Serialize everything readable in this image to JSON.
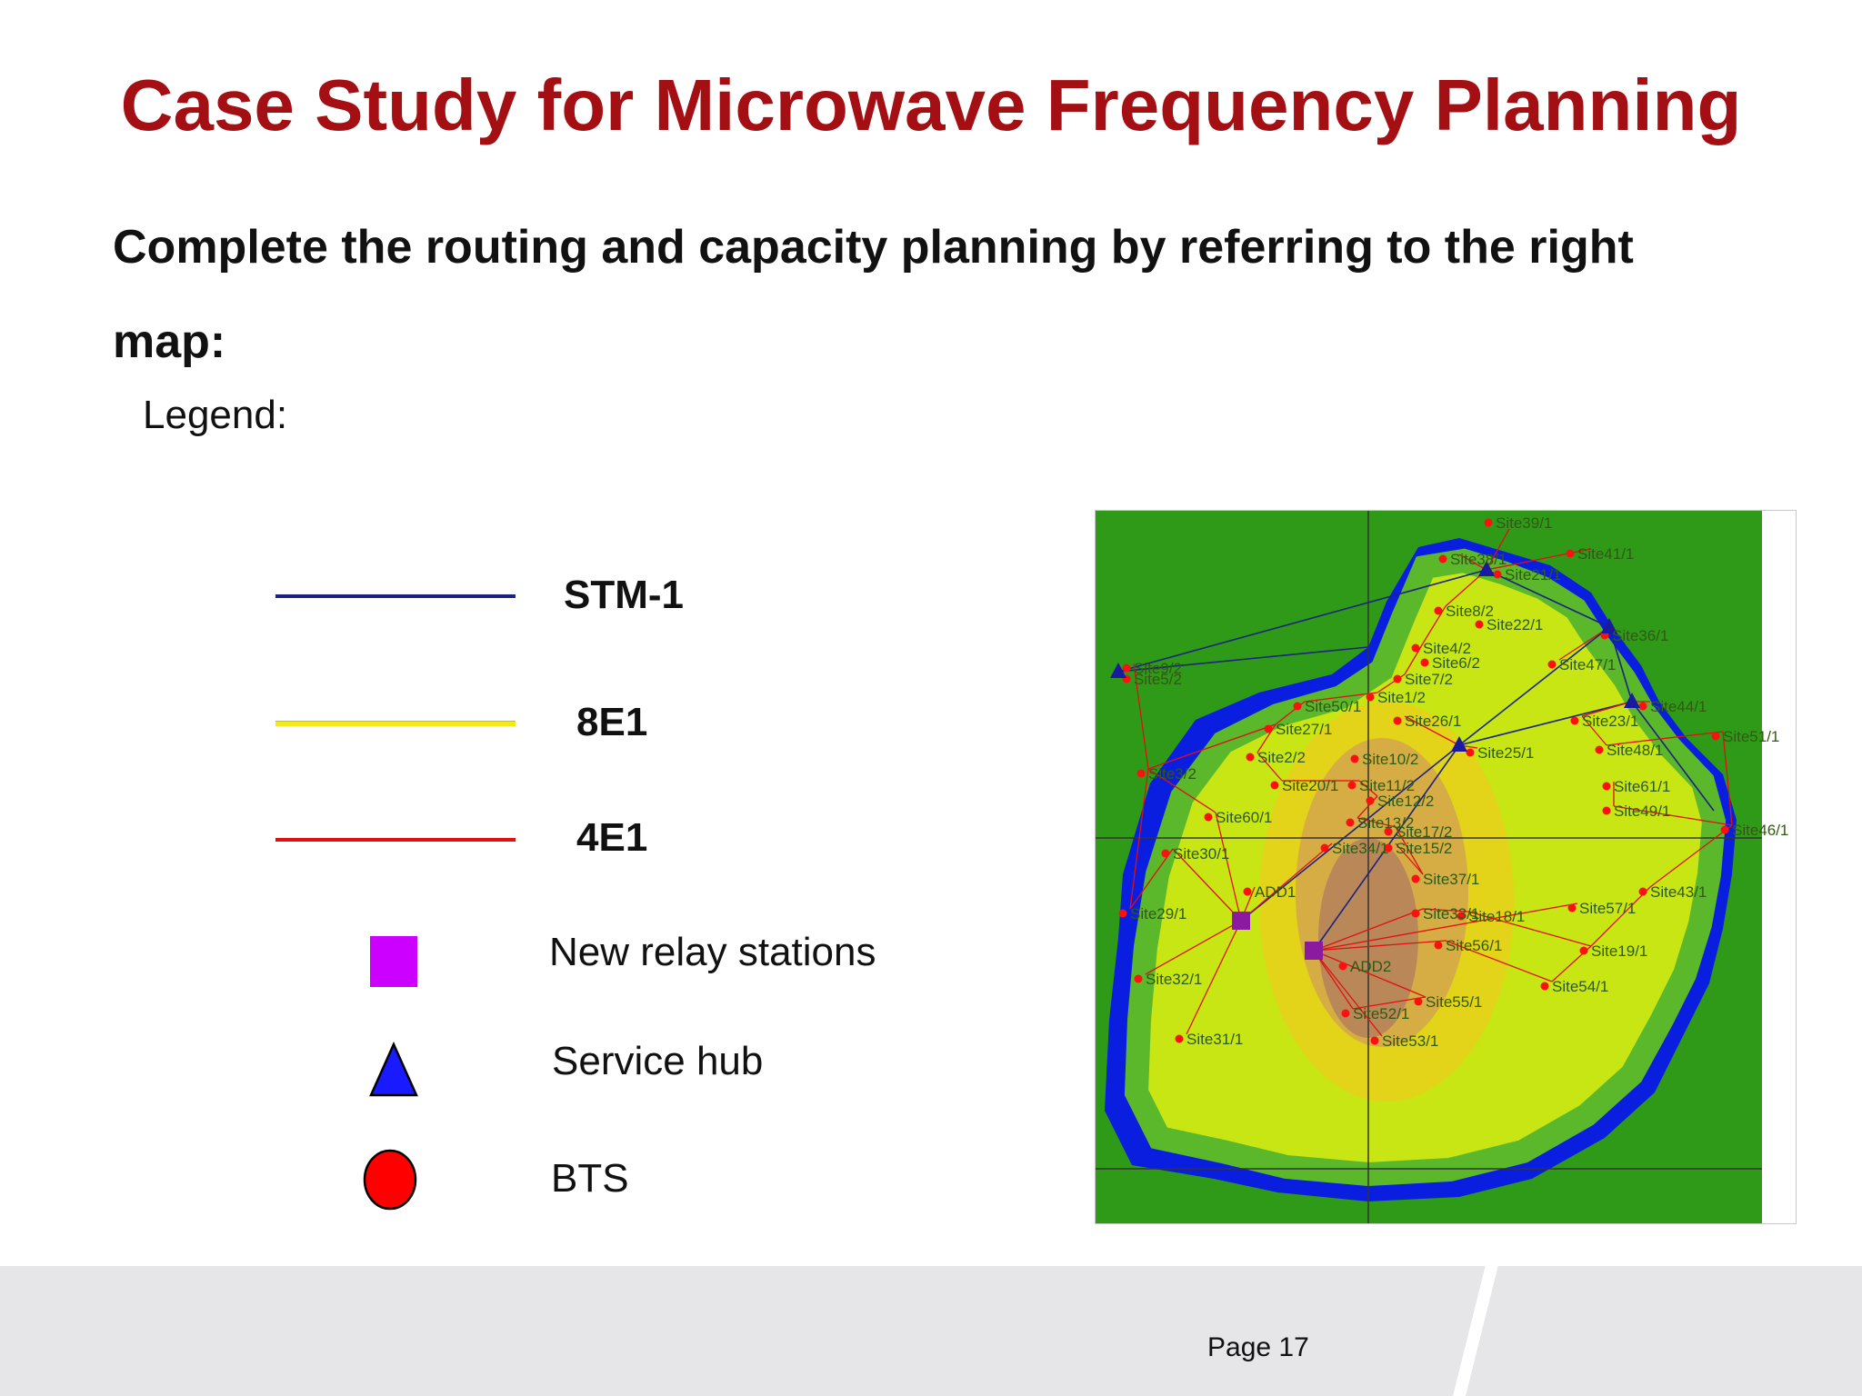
{
  "slide": {
    "title": "Case Study for Microwave Frequency Planning",
    "instruction": "Complete the routing and capacity planning by referring to the right map:",
    "page_label": "Page 17"
  },
  "legend": {
    "heading": "Legend:",
    "items": [
      {
        "label": "STM-1",
        "symbol": "line",
        "color": "#1a237e"
      },
      {
        "label": "8E1",
        "symbol": "line",
        "color": "#f2ea1a"
      },
      {
        "label": "4E1",
        "symbol": "line",
        "color": "#e01010"
      },
      {
        "label": "New relay stations",
        "symbol": "square",
        "color": "#cc00ff"
      },
      {
        "label": "Service hub",
        "symbol": "triangle",
        "color": "#1a1aff"
      },
      {
        "label": "BTS",
        "symbol": "circle",
        "color": "#ff0000"
      }
    ]
  },
  "colors": {
    "title": "#a40f14",
    "sea": "#0a1ee0",
    "land_low": "#2f9a18",
    "land_mid": "#c8e614",
    "land_high": "#c09860",
    "footer": "#e6e6e8"
  },
  "map": {
    "labels": [
      "Site39/1",
      "Site38/1",
      "Site41/1",
      "Site21/1",
      "Site8/2",
      "Site22/1",
      "Site36/1",
      "Site4/2",
      "Site6/2",
      "Site47/1",
      "Site9/2",
      "Site5/2",
      "Site7/2",
      "Site50/1",
      "Site1/2",
      "Site44/1",
      "Site26/1",
      "Site23/1",
      "Site27/1",
      "Site51/1",
      "Site48/1",
      "Site25/1",
      "Site2/2",
      "Site10/2",
      "Site3/2",
      "Site20/1",
      "Site11/2",
      "Site61/1",
      "Site12/2",
      "Site49/1",
      "Site60/1",
      "Site13/2",
      "Site17/2",
      "Site46/1",
      "Site34/1",
      "Site15/2",
      "Site30/1",
      "Site37/1",
      "ADD1",
      "Site43/1",
      "Site29/1",
      "Site33/1",
      "Site18/1",
      "Site57/1",
      "Site56/1",
      "Site19/1",
      "ADD2",
      "Site32/1",
      "Site54/1",
      "Site55/1",
      "Site52/1",
      "Site31/1",
      "Site53/1"
    ]
  }
}
